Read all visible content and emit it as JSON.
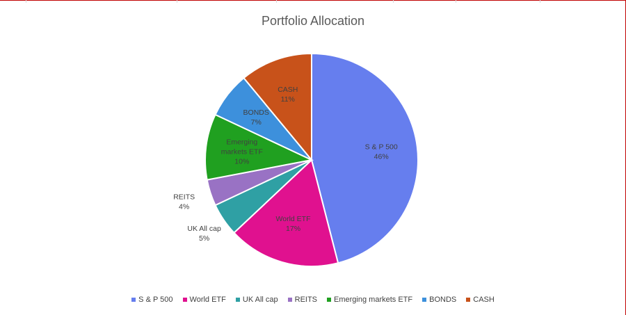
{
  "chart_data": {
    "type": "pie",
    "title": "Portfolio Allocation",
    "categories": [
      "S & P 500",
      "World ETF",
      "UK All cap",
      "REITS",
      "Emerging markets ETF",
      "BONDS",
      "CASH"
    ],
    "values": [
      46,
      17,
      5,
      4,
      10,
      7,
      11
    ],
    "value_labels": [
      "46%",
      "17%",
      "5%",
      "4%",
      "10%",
      "7%",
      "11%"
    ],
    "colors": [
      "#667eee",
      "#e0118f",
      "#2fa0a4",
      "#9972c4",
      "#20a020",
      "#3d90dc",
      "#c8521a"
    ],
    "start_angle": "12 o'clock, clockwise",
    "legend": "bottom",
    "label_style": "category name and percentage"
  }
}
